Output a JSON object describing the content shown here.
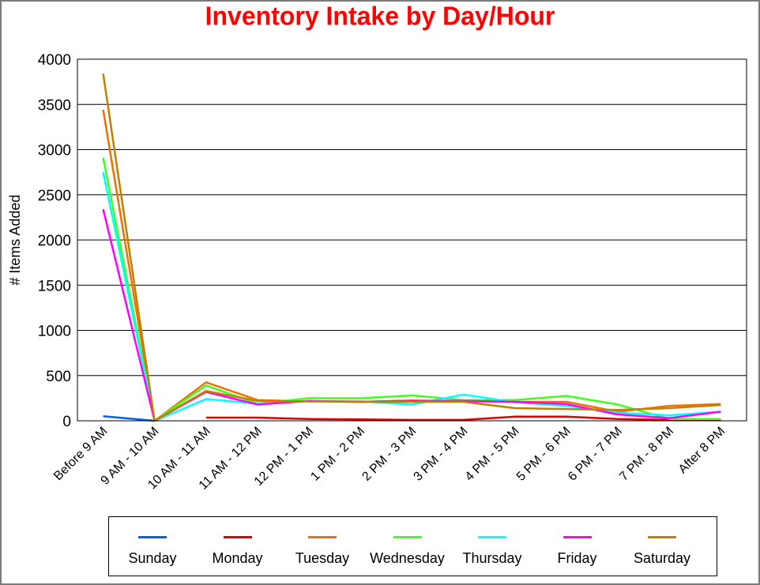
{
  "chart_data": {
    "type": "line",
    "title": "Inventory Intake by Day/Hour",
    "ylabel": "# Items Added",
    "xlabel": "",
    "ylim": [
      0,
      4000
    ],
    "yticks": [
      0,
      500,
      1000,
      1500,
      2000,
      2500,
      3000,
      3500,
      4000
    ],
    "grid": "horizontal",
    "legend_position": "bottom",
    "categories": [
      "Before 9 AM",
      "9 AM - 10 AM",
      "10 AM - 11 AM",
      "11 AM - 12 PM",
      "12 PM - 1 PM",
      "1 PM - 2 PM",
      "2 PM - 3 PM",
      "3 PM - 4 PM",
      "4 PM - 5 PM",
      "5 PM - 6 PM",
      "6 PM - 7 PM",
      "7 PM - 8 PM",
      "After 8 PM"
    ],
    "series": [
      {
        "name": "Sunday",
        "color": "#0060ff",
        "values": [
          50,
          0,
          null,
          null,
          null,
          null,
          null,
          null,
          null,
          null,
          null,
          null,
          null
        ]
      },
      {
        "name": "Monday",
        "color": "#e00000",
        "values": [
          null,
          null,
          35,
          35,
          20,
          15,
          10,
          10,
          45,
          45,
          20,
          10,
          15
        ]
      },
      {
        "name": "Tuesday",
        "color": "#f07000",
        "values": [
          3440,
          0,
          425,
          230,
          215,
          210,
          225,
          215,
          210,
          210,
          100,
          165,
          185
        ]
      },
      {
        "name": "Wednesday",
        "color": "#40ff20",
        "values": [
          2910,
          0,
          390,
          190,
          250,
          250,
          280,
          230,
          230,
          275,
          180,
          20,
          20
        ]
      },
      {
        "name": "Thursday",
        "color": "#00ffff",
        "values": [
          2750,
          0,
          240,
          190,
          215,
          215,
          180,
          290,
          205,
          165,
          90,
          60,
          100
        ]
      },
      {
        "name": "Friday",
        "color": "#ff00ff",
        "values": [
          2340,
          0,
          320,
          180,
          220,
          210,
          220,
          220,
          210,
          185,
          70,
          30,
          100
        ]
      },
      {
        "name": "Saturday",
        "color": "#c08000",
        "values": [
          3840,
          0,
          330,
          220,
          215,
          210,
          210,
          210,
          140,
          130,
          120,
          140,
          175
        ]
      }
    ]
  }
}
